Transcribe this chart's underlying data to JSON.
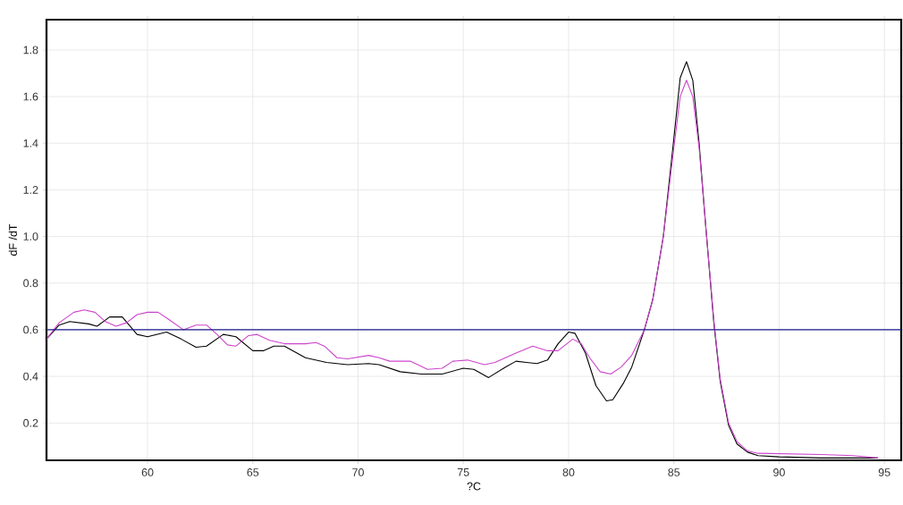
{
  "chart_data": {
    "type": "line",
    "xlabel": "?C",
    "ylabel": "dF /dT",
    "xlim": [
      55.2,
      95.8
    ],
    "ylim": [
      0.04,
      1.93
    ],
    "xticks": [
      60,
      65,
      70,
      75,
      80,
      85,
      90,
      95
    ],
    "yticks": [
      0.2,
      0.4,
      0.6,
      0.8,
      {
        "value": 1.0,
        "label": "1.0"
      },
      1.2,
      1.4,
      1.6,
      1.8
    ],
    "grid": true,
    "legend": false,
    "marker": "none",
    "ref_lines": [
      {
        "axis": "y",
        "value": 0.6,
        "color": "#1a1a8c"
      }
    ],
    "series": [
      {
        "color": "#000000",
        "x": [
          55.2,
          55.8,
          56.3,
          57.2,
          57.6,
          58.2,
          58.8,
          59.5,
          60,
          60.9,
          61.6,
          62.3,
          62.8,
          63.6,
          64.2,
          65,
          65.5,
          66,
          66.5,
          67.5,
          68.5,
          69.5,
          70.5,
          71,
          72,
          73,
          74,
          75,
          75.5,
          76.2,
          77,
          77.5,
          78,
          78.5,
          79,
          79.5,
          80,
          80.3,
          80.8,
          81.3,
          81.8,
          82.1,
          82.6,
          83,
          83.6,
          84,
          84.5,
          85,
          85.3,
          85.6,
          85.9,
          86.2,
          86.5,
          86.9,
          87.2,
          87.6,
          88,
          88.5,
          89,
          90,
          92,
          94.7
        ],
        "values": [
          0.56,
          0.62,
          0.635,
          0.625,
          0.615,
          0.655,
          0.655,
          0.58,
          0.57,
          0.59,
          0.56,
          0.525,
          0.53,
          0.58,
          0.57,
          0.51,
          0.51,
          0.53,
          0.53,
          0.48,
          0.46,
          0.45,
          0.455,
          0.45,
          0.42,
          0.41,
          0.41,
          0.435,
          0.43,
          0.395,
          0.44,
          0.465,
          0.46,
          0.455,
          0.47,
          0.54,
          0.59,
          0.585,
          0.5,
          0.36,
          0.295,
          0.3,
          0.37,
          0.44,
          0.6,
          0.73,
          1.0,
          1.42,
          1.68,
          1.75,
          1.67,
          1.4,
          1.06,
          0.63,
          0.38,
          0.19,
          0.11,
          0.075,
          0.06,
          0.055,
          0.05,
          0.05
        ]
      },
      {
        "color": "#cc44cc",
        "x": [
          55.2,
          55.8,
          56.5,
          57,
          57.5,
          58,
          58.5,
          59,
          59.5,
          60,
          60.5,
          61,
          61.7,
          62.3,
          62.8,
          63.3,
          63.8,
          64.2,
          64.8,
          65.2,
          65.8,
          66.5,
          67.5,
          68,
          68.4,
          69,
          69.5,
          70.5,
          71,
          71.5,
          72.5,
          73.3,
          74,
          74.5,
          75.2,
          76,
          76.5,
          77.5,
          78.3,
          79,
          79.5,
          80.2,
          80.6,
          81,
          81.5,
          82,
          82.5,
          83,
          83.6,
          84,
          84.5,
          85,
          85.3,
          85.6,
          85.9,
          86.2,
          86.5,
          86.9,
          87.2,
          87.6,
          88,
          88.5,
          89,
          92,
          93.5,
          94.7
        ],
        "values": [
          0.56,
          0.63,
          0.675,
          0.685,
          0.675,
          0.635,
          0.615,
          0.63,
          0.665,
          0.675,
          0.675,
          0.645,
          0.6,
          0.62,
          0.62,
          0.58,
          0.535,
          0.53,
          0.575,
          0.58,
          0.555,
          0.54,
          0.54,
          0.545,
          0.53,
          0.48,
          0.475,
          0.49,
          0.48,
          0.465,
          0.465,
          0.43,
          0.435,
          0.465,
          0.47,
          0.45,
          0.46,
          0.5,
          0.53,
          0.51,
          0.51,
          0.56,
          0.54,
          0.48,
          0.42,
          0.41,
          0.44,
          0.49,
          0.6,
          0.73,
          1.0,
          1.38,
          1.6,
          1.67,
          1.6,
          1.38,
          1.06,
          0.64,
          0.39,
          0.2,
          0.12,
          0.08,
          0.07,
          0.065,
          0.06,
          0.05
        ]
      }
    ]
  }
}
